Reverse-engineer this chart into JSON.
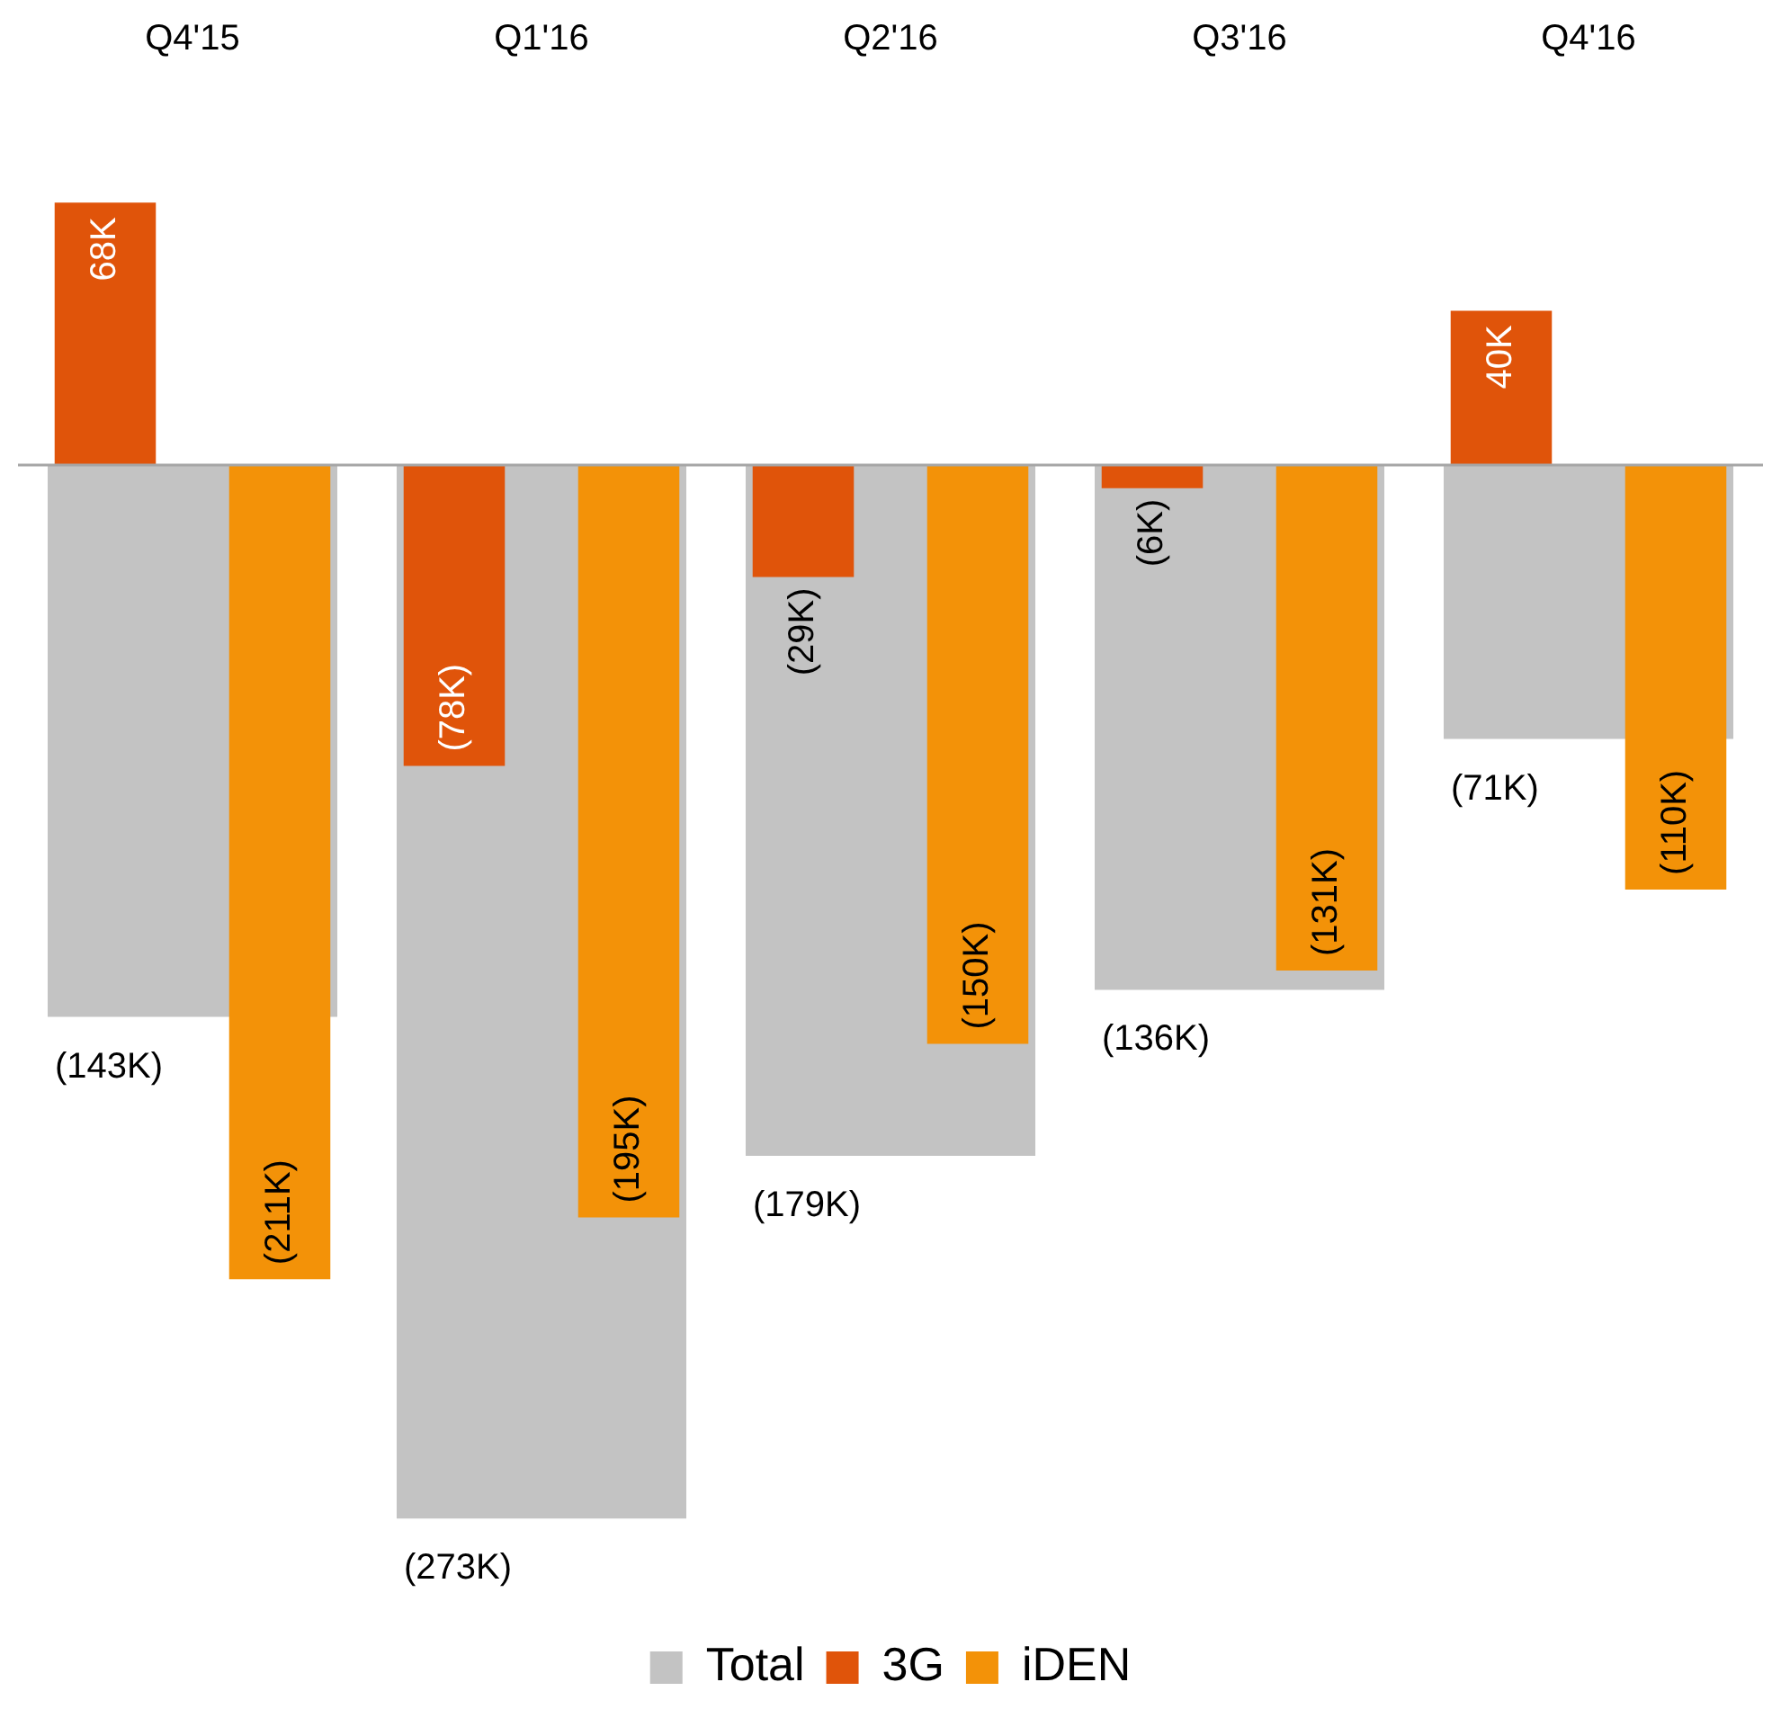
{
  "chart_data": {
    "type": "bar",
    "categories": [
      "Q4'15",
      "Q1'16",
      "Q2'16",
      "Q3'16",
      "Q4'16"
    ],
    "series": [
      {
        "name": "Total",
        "color": "#c3c3c3",
        "values": [
          -143,
          -273,
          -179,
          -136,
          -71
        ],
        "value_labels": [
          "(143K)",
          "(273K)",
          "(179K)",
          "(136K)",
          "(71K)"
        ]
      },
      {
        "name": "3G",
        "color": "#e0540a",
        "values": [
          68,
          -78,
          -29,
          -6,
          40
        ],
        "value_labels": [
          "68K",
          "(78K)",
          "(29K)",
          "(6K)",
          "40K"
        ]
      },
      {
        "name": "iDEN",
        "color": "#f39208",
        "values": [
          -211,
          -195,
          -150,
          -131,
          -110
        ],
        "value_labels": [
          "(211K)",
          "(195K)",
          "(150K)",
          "(131K)",
          "(110K)"
        ]
      }
    ],
    "legend": "bottom",
    "grid": false
  }
}
